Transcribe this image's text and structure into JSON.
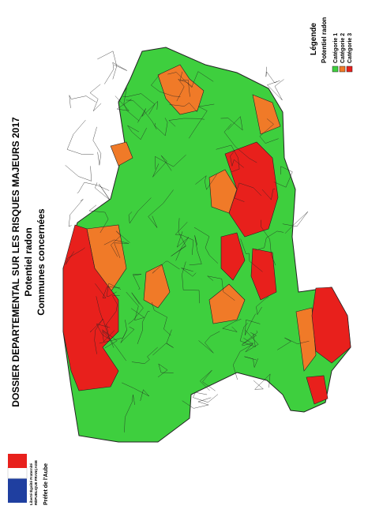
{
  "header": {
    "lines": [
      "DOSSIER DEPARTEMENTAL SUR LES RISQUES MAJEURS 2017",
      "Potentiel radon",
      "Communes concernées"
    ]
  },
  "legend": {
    "title": "Légende",
    "subtitle": "Potentiel radon",
    "items": [
      {
        "label": "Catégorie 1",
        "color": "#3ecf3e"
      },
      {
        "label": "Catégorie 2",
        "color": "#f07a28"
      },
      {
        "label": "Catégorie 3",
        "color": "#e8201c"
      }
    ]
  },
  "footer": {
    "motto": "Liberté Égalité Fraternité",
    "republic": "RÉPUBLIQUE FRANÇAISE",
    "prefect": "Préfet de l'Aube"
  }
}
